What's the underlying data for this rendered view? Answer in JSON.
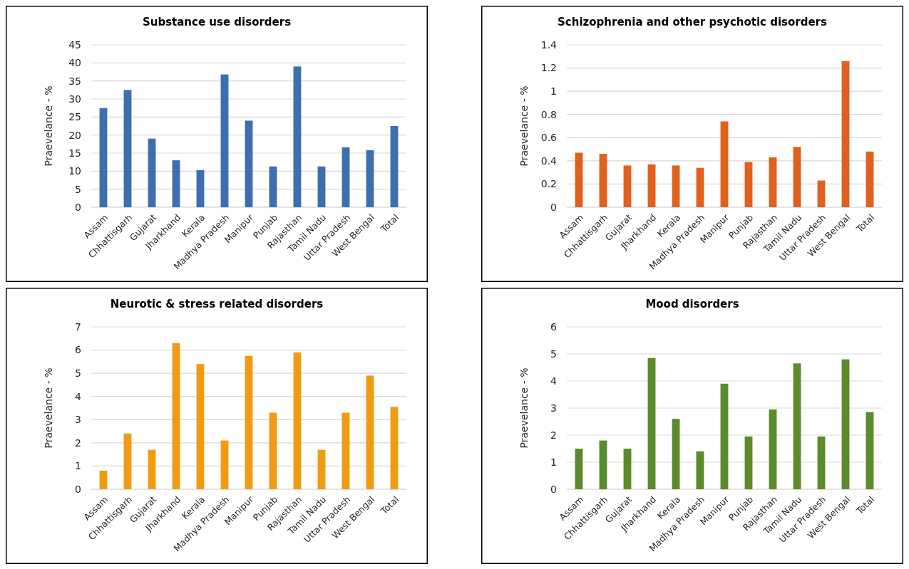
{
  "chart_data": [
    {
      "type": "bar",
      "title": "Substance use disorders",
      "ylabel": "Praevelance - %",
      "categories": [
        "Assam",
        "Chhattisgarh",
        "Gujarat",
        "Jharkhand",
        "Kerala",
        "Madhya Pradesh",
        "Manipur",
        "Punjab",
        "Rajasthan",
        "Tamil Nadu",
        "Uttar Pradesh",
        "West Bengal",
        "Total"
      ],
      "values": [
        27.5,
        32.5,
        19,
        13,
        10.3,
        36.8,
        24,
        11.3,
        39,
        11.3,
        16.6,
        15.8,
        22.5
      ],
      "color": "#3d6fb0",
      "ylim": [
        0,
        45
      ],
      "yticks": [
        0,
        5,
        10,
        15,
        20,
        25,
        30,
        35,
        40,
        45
      ],
      "grid": "y"
    },
    {
      "type": "bar",
      "title": "Schizophrenia and other psychotic disorders",
      "ylabel": "Praevelance - %",
      "categories": [
        "Assam",
        "Chhattisgarh",
        "Gujarat",
        "Jharkhand",
        "Kerala",
        "Madhya Pradesh",
        "Manipur",
        "Punjab",
        "Rajasthan",
        "Tamil Nadu",
        "Uttar Pradesh",
        "West Bengal",
        "Total"
      ],
      "values": [
        0.47,
        0.46,
        0.36,
        0.37,
        0.36,
        0.34,
        0.74,
        0.39,
        0.43,
        0.52,
        0.23,
        1.26,
        0.48
      ],
      "color": "#e0611d",
      "ylim": [
        0,
        1.4
      ],
      "yticks": [
        0,
        0.2,
        0.4,
        0.6,
        0.8,
        1,
        1.2,
        1.4
      ],
      "grid": "y"
    },
    {
      "type": "bar",
      "title": "Neurotic & stress related disorders",
      "ylabel": "Praevelance - %",
      "categories": [
        "Assam",
        "Chhattisgarh",
        "Gujarat",
        "Jharkhand",
        "Kerala",
        "Madhya Pradesh",
        "Manipur",
        "Punjab",
        "Rajasthan",
        "Tamil Nadu",
        "Uttar Pradesh",
        "West Bengal",
        "Total"
      ],
      "values": [
        0.8,
        2.4,
        1.7,
        6.3,
        5.4,
        2.1,
        5.75,
        3.3,
        5.9,
        1.7,
        3.3,
        4.9,
        3.55
      ],
      "color": "#f19b14",
      "ylim": [
        0,
        7
      ],
      "yticks": [
        0,
        1,
        2,
        3,
        4,
        5,
        6,
        7
      ],
      "grid": "y"
    },
    {
      "type": "bar",
      "title": "Mood disorders",
      "ylabel": "Praevelance - %",
      "categories": [
        "Assam",
        "Chhattisgarh",
        "Gujarat",
        "Jharkhand",
        "Kerala",
        "Madhya Pradesh",
        "Manipur",
        "Punjab",
        "Rajasthan",
        "Tamil Nadu",
        "Uttar Pradesh",
        "West Bengal",
        "Total"
      ],
      "values": [
        1.5,
        1.8,
        1.5,
        4.85,
        2.6,
        1.4,
        3.9,
        1.95,
        2.95,
        4.65,
        1.95,
        4.8,
        2.85
      ],
      "color": "#5a8c2c",
      "ylim": [
        0,
        6
      ],
      "yticks": [
        0,
        1,
        2,
        3,
        4,
        5,
        6
      ],
      "grid": "y"
    }
  ]
}
